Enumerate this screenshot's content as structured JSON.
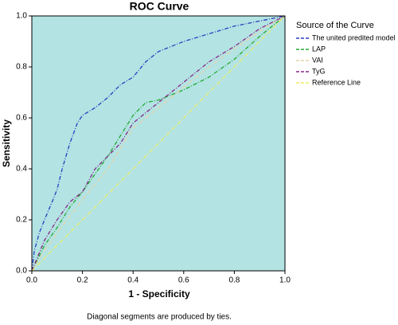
{
  "chart_data": {
    "type": "line",
    "title": "ROC Curve",
    "xlabel": "1 - Specificity",
    "ylabel": "Sensitivity",
    "footnote": "Diagonal segments are produced by ties.",
    "legend_title": "Source of the Curve",
    "legend": "right",
    "background": "#b3e3e3",
    "xlim": [
      0,
      1
    ],
    "ylim": [
      0,
      1
    ],
    "xticks": [
      {
        "value": 0,
        "label": "0.0"
      },
      0.2,
      0.4,
      0.6,
      0.8,
      {
        "value": 1,
        "label": "1.0"
      }
    ],
    "yticks": [
      {
        "value": 0,
        "label": "0.0"
      },
      0.2,
      0.4,
      0.6,
      0.8,
      {
        "value": 1,
        "label": "1.0"
      }
    ],
    "series": [
      {
        "name": "The united predited model",
        "color": "#2a3fbf",
        "x": [
          0,
          0.01,
          0.03,
          0.05,
          0.08,
          0.1,
          0.12,
          0.15,
          0.18,
          0.2,
          0.25,
          0.3,
          0.35,
          0.4,
          0.45,
          0.5,
          0.55,
          0.6,
          0.7,
          0.8,
          0.9,
          1
        ],
        "values": [
          0,
          0.08,
          0.15,
          0.2,
          0.27,
          0.32,
          0.4,
          0.5,
          0.58,
          0.61,
          0.64,
          0.68,
          0.73,
          0.76,
          0.82,
          0.86,
          0.88,
          0.9,
          0.93,
          0.96,
          0.98,
          1
        ]
      },
      {
        "name": "LAP",
        "color": "#22aa33",
        "x": [
          0,
          0.05,
          0.1,
          0.15,
          0.2,
          0.25,
          0.3,
          0.35,
          0.4,
          0.45,
          0.5,
          0.6,
          0.7,
          0.8,
          0.9,
          1
        ],
        "values": [
          0,
          0.1,
          0.17,
          0.25,
          0.31,
          0.38,
          0.45,
          0.53,
          0.61,
          0.66,
          0.67,
          0.71,
          0.76,
          0.83,
          0.92,
          1
        ]
      },
      {
        "name": "VAI",
        "color": "#e6d4a8",
        "x": [
          0,
          0.05,
          0.1,
          0.2,
          0.3,
          0.35,
          0.4,
          0.5,
          0.6,
          0.7,
          0.8,
          0.9,
          1
        ],
        "values": [
          0,
          0.08,
          0.15,
          0.28,
          0.4,
          0.48,
          0.56,
          0.64,
          0.72,
          0.8,
          0.87,
          0.94,
          1
        ]
      },
      {
        "name": "TyG",
        "color": "#862a86",
        "x": [
          0,
          0.05,
          0.1,
          0.15,
          0.2,
          0.25,
          0.3,
          0.35,
          0.4,
          0.5,
          0.6,
          0.7,
          0.8,
          0.9,
          1
        ],
        "values": [
          0,
          0.12,
          0.2,
          0.27,
          0.31,
          0.4,
          0.45,
          0.5,
          0.58,
          0.66,
          0.74,
          0.82,
          0.88,
          0.95,
          1
        ]
      },
      {
        "name": "Reference Line",
        "color": "#eeee66",
        "x": [
          0,
          1
        ],
        "values": [
          0,
          1
        ]
      }
    ]
  }
}
